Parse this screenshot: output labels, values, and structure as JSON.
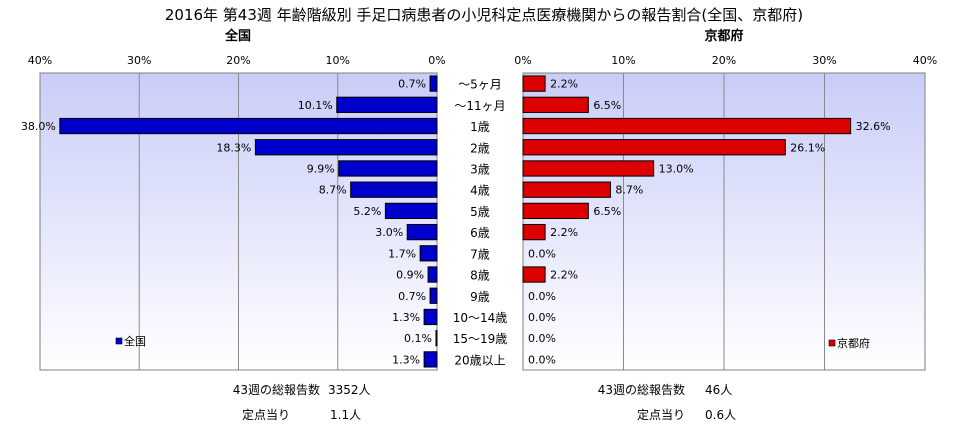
{
  "chart_data": {
    "type": "bar",
    "orientation": "horizontal",
    "title": "2016年 第43週 年齢階級別 手足口病患者の小児科定点医療機関からの報告割合(全国、京都府)",
    "categories": [
      "～5ヶ月",
      "～11ヶ月",
      "1歳",
      "2歳",
      "3歳",
      "4歳",
      "5歳",
      "6歳",
      "7歳",
      "8歳",
      "9歳",
      "10～14歳",
      "15～19歳",
      "20歳以上"
    ],
    "xlim": [
      0,
      40
    ],
    "tick_values": [
      0,
      10,
      20,
      30,
      40
    ],
    "tick_labels": [
      "0%",
      "10%",
      "20%",
      "30%",
      "40%"
    ],
    "grid": "vertical",
    "panels": [
      {
        "id": "national",
        "heading": "全国",
        "legend": "全国",
        "legend_position": "bottom-left",
        "direction": "right-to-left",
        "color": "#0000cc",
        "values": [
          0.7,
          10.1,
          38.0,
          18.3,
          9.9,
          8.7,
          5.2,
          3.0,
          1.7,
          0.9,
          0.7,
          1.3,
          0.1,
          1.3
        ],
        "value_labels": [
          "0.7%",
          "10.1%",
          "38.0%",
          "18.3%",
          "9.9%",
          "8.7%",
          "5.2%",
          "3.0%",
          "1.7%",
          "0.9%",
          "0.7%",
          "1.3%",
          "0.1%",
          "1.3%"
        ]
      },
      {
        "id": "kyoto",
        "heading": "京都府",
        "legend": "京都府",
        "legend_position": "bottom-right",
        "direction": "left-to-right",
        "color": "#dd0000",
        "values": [
          2.2,
          6.5,
          32.6,
          26.1,
          13.0,
          8.7,
          6.5,
          2.2,
          0.0,
          2.2,
          0.0,
          0.0,
          0.0,
          0.0
        ],
        "value_labels": [
          "2.2%",
          "6.5%",
          "32.6%",
          "26.1%",
          "13.0%",
          "8.7%",
          "6.5%",
          "2.2%",
          "0.0%",
          "2.2%",
          "0.0%",
          "0.0%",
          "0.0%",
          "0.0%"
        ]
      }
    ]
  },
  "summary": {
    "national": {
      "total_label": "43週の総報告数",
      "total_value": "3352人",
      "per_label": "定点当り",
      "per_value": "1.1人"
    },
    "kyoto": {
      "total_label": "43週の総報告数",
      "total_value": "46人",
      "per_label": "定点当り",
      "per_value": "0.6人"
    }
  },
  "colors": {
    "plot_background_top": "#c9cdf7",
    "plot_background_bottom": "#ffffff"
  }
}
